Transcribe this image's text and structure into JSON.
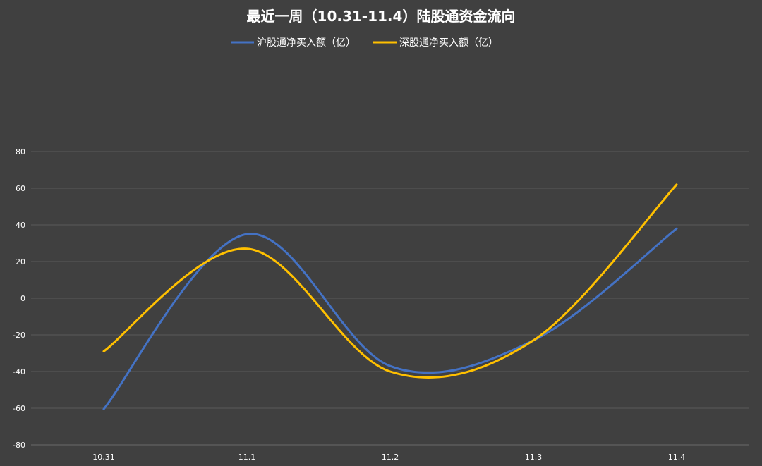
{
  "chart_data": {
    "type": "line",
    "title": "最近一周（10.31-11.4）陆股通资金流向",
    "xlabel": "",
    "ylabel": "",
    "categories": [
      "10.31",
      "11.1",
      "11.2",
      "11.3",
      "11.4"
    ],
    "ylim": [
      -80,
      80
    ],
    "yticks": [
      80,
      60,
      40,
      20,
      0,
      -20,
      -40,
      -60,
      -80
    ],
    "grid": true,
    "smooth": true,
    "legend_position": "top-center",
    "series": [
      {
        "name": "沪股通净买入额（亿）",
        "color": "#4472C4",
        "values": [
          -60.5,
          35,
          -37,
          -23,
          38
        ]
      },
      {
        "name": "深股通净买入额（亿）",
        "color": "#FFC000",
        "values": [
          -29,
          27,
          -40,
          -23,
          62
        ]
      }
    ]
  },
  "colors": {
    "background": "#404040",
    "grid": "#5a5a5a",
    "text": "#ffffff"
  }
}
